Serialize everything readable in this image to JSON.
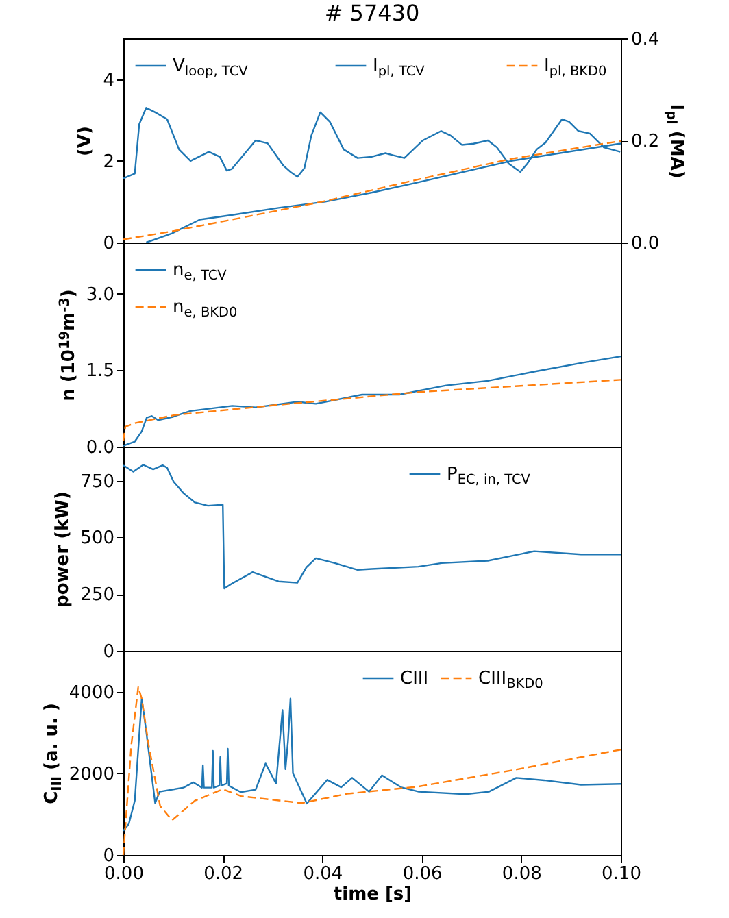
{
  "chart_data": [
    {
      "type": "line",
      "title": "# 57430",
      "ylabel": "(V)",
      "y2label": "I$_{pl}$ (MA)",
      "xlim": [
        0,
        0.1
      ],
      "ylim": [
        0,
        5
      ],
      "yticks": [
        0,
        2,
        4
      ],
      "y2lim": [
        0,
        0.4
      ],
      "y2ticks": [
        {
          "value": 0,
          "label": "0.0"
        },
        {
          "value": 0.2,
          "label": "0.2"
        },
        {
          "value": 0.4,
          "label": "0.4"
        }
      ],
      "legend": "top",
      "tick_labels": [
        "y",
        "y2"
      ],
      "grid": false,
      "series": [
        {
          "name": "V$_{loop, TCV}$",
          "color": "#1f77b4",
          "line_style": "solid",
          "x": [
            0,
            0.0023,
            0.0032,
            0.0046,
            0.0064,
            0.0088,
            0.0112,
            0.0135,
            0.0172,
            0.0194,
            0.0208,
            0.0218,
            0.0266,
            0.029,
            0.0322,
            0.0336,
            0.035,
            0.0364,
            0.0378,
            0.0396,
            0.0415,
            0.0443,
            0.0471,
            0.0499,
            0.0527,
            0.0541,
            0.0565,
            0.0602,
            0.0639,
            0.0658,
            0.0681,
            0.0704,
            0.0733,
            0.0751,
            0.0775,
            0.0798,
            0.0812,
            0.0831,
            0.0849,
            0.0882,
            0.0896,
            0.0915,
            0.0938,
            0.0966,
            0.0999
          ],
          "values": [
            1.57,
            1.69,
            2.9,
            3.3,
            3.19,
            3.02,
            2.28,
            2.0,
            2.22,
            2.1,
            1.76,
            1.8,
            2.5,
            2.43,
            1.88,
            1.73,
            1.61,
            1.82,
            2.62,
            3.19,
            2.96,
            2.28,
            2.07,
            2.1,
            2.19,
            2.14,
            2.07,
            2.5,
            2.73,
            2.62,
            2.39,
            2.42,
            2.5,
            2.33,
            1.93,
            1.73,
            1.93,
            2.28,
            2.45,
            3.02,
            2.96,
            2.73,
            2.67,
            2.33,
            2.22
          ]
        },
        {
          "name": "I$_{pl, TCV}$",
          "color": "#1f77b4",
          "line_style": "solid",
          "axis": "y2",
          "x": [
            0.0046,
            0.0098,
            0.0154,
            0.0219,
            0.0312,
            0.0406,
            0.05,
            0.0593,
            0.078,
            0.1
          ],
          "values": [
            0,
            0.018,
            0.045,
            0.054,
            0.068,
            0.08,
            0.098,
            0.118,
            0.16,
            0.194
          ]
        },
        {
          "name": "I$_{pl, BKD0}$",
          "color": "#ff7f0e",
          "line_style": "dashed",
          "axis": "y2",
          "x": [
            0,
            0.0098,
            0.0219,
            0.04,
            0.059,
            0.078,
            0.1
          ],
          "values": [
            0.006,
            0.022,
            0.045,
            0.08,
            0.123,
            0.164,
            0.199
          ]
        }
      ]
    },
    {
      "type": "line",
      "ylabel": "n (10$^{19}$m$^{-3}$)",
      "xlim": [
        0,
        0.1
      ],
      "ylim": [
        0,
        4
      ],
      "yticks": [
        {
          "value": 0,
          "label": "0.0"
        },
        {
          "value": 1.5,
          "label": "1.5"
        },
        {
          "value": 3,
          "label": "3.0"
        }
      ],
      "legend": "top left",
      "tick_labels": "y",
      "grid": false,
      "series": [
        {
          "name": "n$_{e, TCV}$",
          "color": "#1f77b4",
          "line_style": "solid",
          "x": [
            0,
            0.0023,
            0.0037,
            0.0047,
            0.0057,
            0.007,
            0.0098,
            0.0135,
            0.0219,
            0.0266,
            0.035,
            0.0387,
            0.048,
            0.0555,
            0.0649,
            0.0733,
            0.0826,
            0.092,
            0.1
          ],
          "values": [
            0.02,
            0.1,
            0.3,
            0.57,
            0.6,
            0.52,
            0.58,
            0.7,
            0.8,
            0.77,
            0.88,
            0.84,
            1.02,
            1.02,
            1.2,
            1.29,
            1.47,
            1.64,
            1.77
          ]
        },
        {
          "name": "n$_{e, BKD0}$",
          "color": "#ff7f0e",
          "line_style": "dashed",
          "x": [
            0,
            0.0004,
            0.0023,
            0.0103,
            0.0312,
            0.0593,
            0.078,
            0.1
          ],
          "values": [
            0.11,
            0.39,
            0.46,
            0.62,
            0.82,
            1.07,
            1.18,
            1.31
          ]
        }
      ]
    },
    {
      "type": "line",
      "ylabel": "power (kW)",
      "xlim": [
        0,
        0.1
      ],
      "ylim": [
        0,
        900
      ],
      "yticks": [
        0,
        250,
        500,
        750
      ],
      "legend": "top right",
      "tick_labels": "y",
      "grid": false,
      "series": [
        {
          "name": "P$_{EC, in, TCV}$",
          "color": "#1f77b4",
          "line_style": "solid",
          "x": [
            0,
            0.002,
            0.004,
            0.006,
            0.0079,
            0.0088,
            0.0101,
            0.0121,
            0.0144,
            0.017,
            0.02,
            0.0203,
            0.0218,
            0.026,
            0.0312,
            0.035,
            0.0368,
            0.0387,
            0.0425,
            0.0471,
            0.0499,
            0.0593,
            0.064,
            0.0733,
            0.0826,
            0.092,
            0.1
          ],
          "values": [
            818,
            790,
            820,
            800,
            818,
            807,
            746,
            695,
            654,
            640,
            644,
            275,
            296,
            347,
            306,
            300,
            368,
            408,
            387,
            357,
            361,
            371,
            387,
            397,
            439,
            425,
            425
          ]
        }
      ]
    },
    {
      "type": "line",
      "ylabel": "C$_{III}$ (a. u. )",
      "xlabel": "time [s]",
      "xlim": [
        0,
        0.1
      ],
      "ylim": [
        0,
        5000
      ],
      "yticks": [
        0,
        2000,
        4000
      ],
      "xticks": [
        {
          "value": 0,
          "label": "0.00"
        },
        {
          "value": 0.02,
          "label": "0.02"
        },
        {
          "value": 0.04,
          "label": "0.04"
        },
        {
          "value": 0.06,
          "label": "0.06"
        },
        {
          "value": 0.08,
          "label": "0.08"
        },
        {
          "value": 0.1,
          "label": "0.10"
        }
      ],
      "legend": "top right",
      "grid": false,
      "series": [
        {
          "name": "CIII",
          "color": "#1f77b4",
          "line_style": "solid",
          "x": [
            0,
            0.0011,
            0.0023,
            0.0037,
            0.0046,
            0.0064,
            0.0073,
            0.0121,
            0.0141,
            0.0158,
            0.016,
            0.0162,
            0.0178,
            0.018,
            0.0182,
            0.0193,
            0.0195,
            0.0197,
            0.0208,
            0.021,
            0.0212,
            0.0236,
            0.0266,
            0.0286,
            0.0307,
            0.032,
            0.0326,
            0.0331,
            0.0336,
            0.0341,
            0.0369,
            0.041,
            0.0438,
            0.046,
            0.0494,
            0.052,
            0.0558,
            0.0594,
            0.0688,
            0.0735,
            0.079,
            0.0846,
            0.092,
            0.1
          ],
          "values": [
            590,
            760,
            1330,
            3830,
            3030,
            1270,
            1550,
            1650,
            1780,
            1650,
            2200,
            1650,
            1650,
            2550,
            1650,
            1700,
            2400,
            1700,
            1750,
            2600,
            1700,
            1540,
            1600,
            2240,
            1750,
            3550,
            2100,
            2780,
            3830,
            2000,
            1260,
            1840,
            1660,
            1890,
            1550,
            1950,
            1660,
            1550,
            1490,
            1550,
            1890,
            1830,
            1720,
            1740
          ]
        },
        {
          "name": "CIII$_{BKD0}$",
          "color": "#ff7f0e",
          "line_style": "dashed",
          "x": [
            0,
            0.0016,
            0.003,
            0.0037,
            0.0051,
            0.0074,
            0.0098,
            0.0144,
            0.02,
            0.0237,
            0.0359,
            0.045,
            0.059,
            0.078,
            0.1
          ],
          "values": [
            0,
            2690,
            4110,
            3830,
            2690,
            1200,
            850,
            1330,
            1610,
            1440,
            1270,
            1500,
            1670,
            2070,
            2580
          ]
        }
      ]
    }
  ]
}
